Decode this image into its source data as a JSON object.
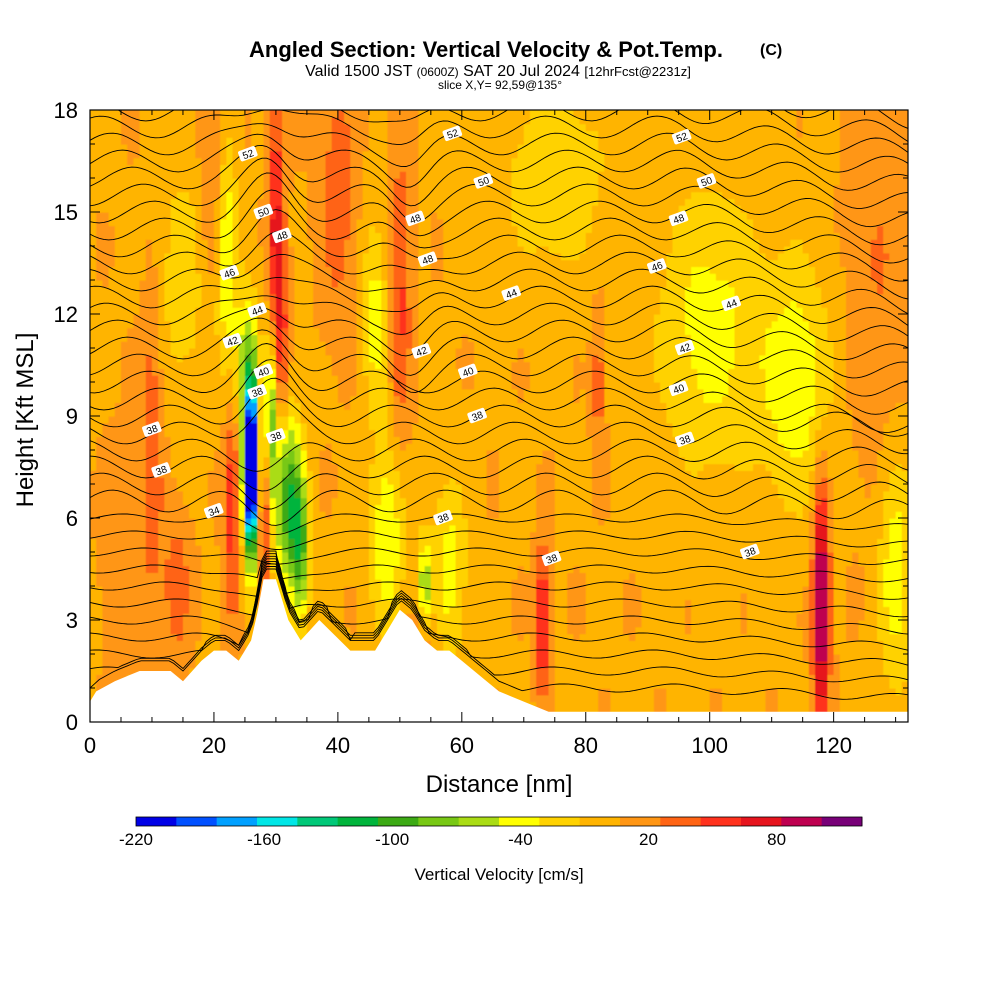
{
  "chart_data": {
    "type": "heatmap",
    "title": "Angled Section: Vertical Velocity & Pot.Temp.",
    "title_mark": "(C)",
    "subtitle_parts": {
      "valid": "Valid 1500 JST",
      "zulu": "(0600Z)",
      "date": "SAT 20 Jul 2024",
      "fcst": "[12hrFcst@2231z]"
    },
    "slice_label": "slice X,Y= 92,59@135°",
    "xlabel": "Distance [nm]",
    "ylabel": "Height [Kft MSL]",
    "xlim": [
      0,
      132
    ],
    "ylim": [
      0,
      18
    ],
    "x_ticks": [
      "0",
      "20",
      "40",
      "60",
      "80",
      "100",
      "120"
    ],
    "y_ticks": [
      "0",
      "3",
      "6",
      "9",
      "12",
      "15",
      "18"
    ],
    "x_tick_values": [
      0,
      20,
      40,
      60,
      80,
      100,
      120
    ],
    "y_tick_values": [
      0,
      3,
      6,
      9,
      12,
      15,
      18
    ],
    "grid": false,
    "colorbar": {
      "label": "Vertical Velocity [cm/s]",
      "tick_labels": [
        "-220",
        "-160",
        "-100",
        "-40",
        "20",
        "80"
      ],
      "tick_values": [
        -220,
        -160,
        -100,
        -40,
        20,
        80
      ],
      "range": [
        -220,
        120
      ],
      "colors": [
        "#0000e6",
        "#0050ff",
        "#00a0ff",
        "#00e6e6",
        "#00c878",
        "#00b43c",
        "#3caa14",
        "#78c814",
        "#aadc14",
        "#ffff00",
        "#ffd200",
        "#ffb400",
        "#ff9614",
        "#ff6414",
        "#ff321e",
        "#e6141e",
        "#be0050",
        "#780078"
      ]
    },
    "terrain_profile": {
      "x": [
        0,
        1,
        4,
        8,
        13,
        15,
        18,
        20,
        22,
        24,
        26,
        27,
        28,
        30,
        32,
        34,
        37,
        42,
        46,
        48,
        50,
        52,
        54,
        56,
        58,
        60,
        62,
        64,
        66,
        70,
        74,
        80,
        132
      ],
      "z_kft": [
        0.6,
        0.9,
        1.2,
        1.5,
        1.5,
        1.2,
        1.8,
        2.1,
        2.1,
        1.8,
        2.4,
        3.2,
        4.2,
        4.2,
        3.0,
        2.4,
        3.0,
        2.1,
        2.1,
        2.7,
        3.3,
        3.0,
        2.4,
        2.1,
        2.1,
        1.8,
        1.5,
        1.2,
        0.9,
        0.6,
        0.3,
        0.3,
        0.3
      ]
    },
    "updraft_cores": [
      {
        "x": 10,
        "z_kft": 8.0,
        "sx": 1.2,
        "sz": 3.2,
        "w": 40
      },
      {
        "x": 14,
        "z_kft": 4.0,
        "sx": 1.5,
        "sz": 1.5,
        "w": 35
      },
      {
        "x": 20,
        "z_kft": 16.0,
        "sx": 1.6,
        "sz": 2.5,
        "w": 30
      },
      {
        "x": 23,
        "z_kft": 6.5,
        "sx": 1.0,
        "sz": 2.5,
        "w": 55
      },
      {
        "x": 28,
        "z_kft": 7.0,
        "sx": 0.7,
        "sz": 2.5,
        "w": 85
      },
      {
        "x": 30,
        "z_kft": 14.5,
        "sx": 0.9,
        "sz": 3.0,
        "w": 65
      },
      {
        "x": 31,
        "z_kft": 11.0,
        "sx": 0.8,
        "sz": 2.0,
        "w": 40
      },
      {
        "x": 40,
        "z_kft": 15.5,
        "sx": 2.0,
        "sz": 2.5,
        "w": 35
      },
      {
        "x": 50,
        "z_kft": 12.5,
        "sx": 1.2,
        "sz": 3.0,
        "w": 45
      },
      {
        "x": 54,
        "z_kft": 2.5,
        "sx": 1.5,
        "sz": 1.5,
        "w": 25
      },
      {
        "x": 73,
        "z_kft": 3.0,
        "sx": 0.7,
        "sz": 1.5,
        "w": 75
      },
      {
        "x": 82,
        "z_kft": 10.0,
        "sx": 0.7,
        "sz": 1.5,
        "w": 35
      },
      {
        "x": 118,
        "z_kft": 3.5,
        "sx": 0.9,
        "sz": 2.5,
        "w": 115
      },
      {
        "x": 127,
        "z_kft": 13.0,
        "sx": 3.5,
        "sz": 4.0,
        "w": 20
      },
      {
        "x": 5,
        "z_kft": 5.0,
        "sx": 2.0,
        "sz": 2.0,
        "w": 20
      }
    ],
    "downdraft_cores": [
      {
        "x": 26,
        "z_kft": 7.5,
        "sx": 0.7,
        "sz": 1.4,
        "w": -210
      },
      {
        "x": 26,
        "z_kft": 7.5,
        "sx": 1.1,
        "sz": 2.3,
        "w": -120
      },
      {
        "x": 29,
        "z_kft": 9.0,
        "sx": 0.8,
        "sz": 1.8,
        "w": -100
      },
      {
        "x": 32,
        "z_kft": 6.5,
        "sx": 1.6,
        "sz": 1.8,
        "w": -110
      },
      {
        "x": 34,
        "z_kft": 5.0,
        "sx": 1.0,
        "sz": 1.5,
        "w": -80
      },
      {
        "x": 25,
        "z_kft": 10.5,
        "sx": 1.5,
        "sz": 1.5,
        "w": -55
      },
      {
        "x": 22,
        "z_kft": 14.0,
        "sx": 1.2,
        "sz": 2.5,
        "w": -60
      },
      {
        "x": 48,
        "z_kft": 5.5,
        "sx": 2.0,
        "sz": 2.0,
        "w": -55
      },
      {
        "x": 54,
        "z_kft": 4.0,
        "sx": 0.8,
        "sz": 1.0,
        "w": -80
      },
      {
        "x": 58,
        "z_kft": 4.5,
        "sx": 2.0,
        "sz": 2.0,
        "w": -45
      },
      {
        "x": 46,
        "z_kft": 12.0,
        "sx": 1.5,
        "sz": 2.0,
        "w": -45
      },
      {
        "x": 100,
        "z_kft": 11.5,
        "sx": 6.0,
        "sz": 3.0,
        "w": -45
      },
      {
        "x": 114,
        "z_kft": 10.0,
        "sx": 4.0,
        "sz": 2.5,
        "w": -50
      },
      {
        "x": 130,
        "z_kft": 4.5,
        "sx": 2.0,
        "sz": 2.5,
        "w": -50
      },
      {
        "x": 75,
        "z_kft": 16.0,
        "sx": 6.0,
        "sz": 2.0,
        "w": -35
      },
      {
        "x": 15,
        "z_kft": 13.0,
        "sx": 3.0,
        "sz": 2.5,
        "w": -30
      }
    ],
    "theta_contour_labels": [
      {
        "text": "52",
        "x": 25.5,
        "z_kft": 16.7
      },
      {
        "text": "52",
        "x": 58.5,
        "z_kft": 17.3
      },
      {
        "text": "52",
        "x": 95.5,
        "z_kft": 17.2
      },
      {
        "text": "50",
        "x": 28.0,
        "z_kft": 15.0
      },
      {
        "text": "50",
        "x": 63.5,
        "z_kft": 15.9
      },
      {
        "text": "50",
        "x": 99.5,
        "z_kft": 15.9
      },
      {
        "text": "48",
        "x": 31.0,
        "z_kft": 14.3
      },
      {
        "text": "48",
        "x": 52.5,
        "z_kft": 14.8
      },
      {
        "text": "48",
        "x": 95.0,
        "z_kft": 14.8
      },
      {
        "text": "48",
        "x": 54.5,
        "z_kft": 13.6
      },
      {
        "text": "46",
        "x": 22.5,
        "z_kft": 13.2
      },
      {
        "text": "46",
        "x": 91.5,
        "z_kft": 13.4
      },
      {
        "text": "44",
        "x": 27.0,
        "z_kft": 12.1
      },
      {
        "text": "44",
        "x": 68.0,
        "z_kft": 12.6
      },
      {
        "text": "44",
        "x": 103.5,
        "z_kft": 12.3
      },
      {
        "text": "42",
        "x": 23.0,
        "z_kft": 11.2
      },
      {
        "text": "42",
        "x": 53.5,
        "z_kft": 10.9
      },
      {
        "text": "42",
        "x": 96.0,
        "z_kft": 11.0
      },
      {
        "text": "40",
        "x": 28.0,
        "z_kft": 10.3
      },
      {
        "text": "40",
        "x": 61.0,
        "z_kft": 10.3
      },
      {
        "text": "40",
        "x": 95.0,
        "z_kft": 9.8
      },
      {
        "text": "38",
        "x": 27.0,
        "z_kft": 9.7
      },
      {
        "text": "38",
        "x": 30.0,
        "z_kft": 8.4
      },
      {
        "text": "38",
        "x": 10.0,
        "z_kft": 8.6
      },
      {
        "text": "38",
        "x": 11.5,
        "z_kft": 7.4
      },
      {
        "text": "38",
        "x": 62.5,
        "z_kft": 9.0
      },
      {
        "text": "38",
        "x": 96.0,
        "z_kft": 8.3
      },
      {
        "text": "38",
        "x": 57.0,
        "z_kft": 6.0
      },
      {
        "text": "38",
        "x": 74.5,
        "z_kft": 4.8
      },
      {
        "text": "38",
        "x": 106.5,
        "z_kft": 5.0
      },
      {
        "text": "34",
        "x": 20.0,
        "z_kft": 6.2
      }
    ]
  }
}
